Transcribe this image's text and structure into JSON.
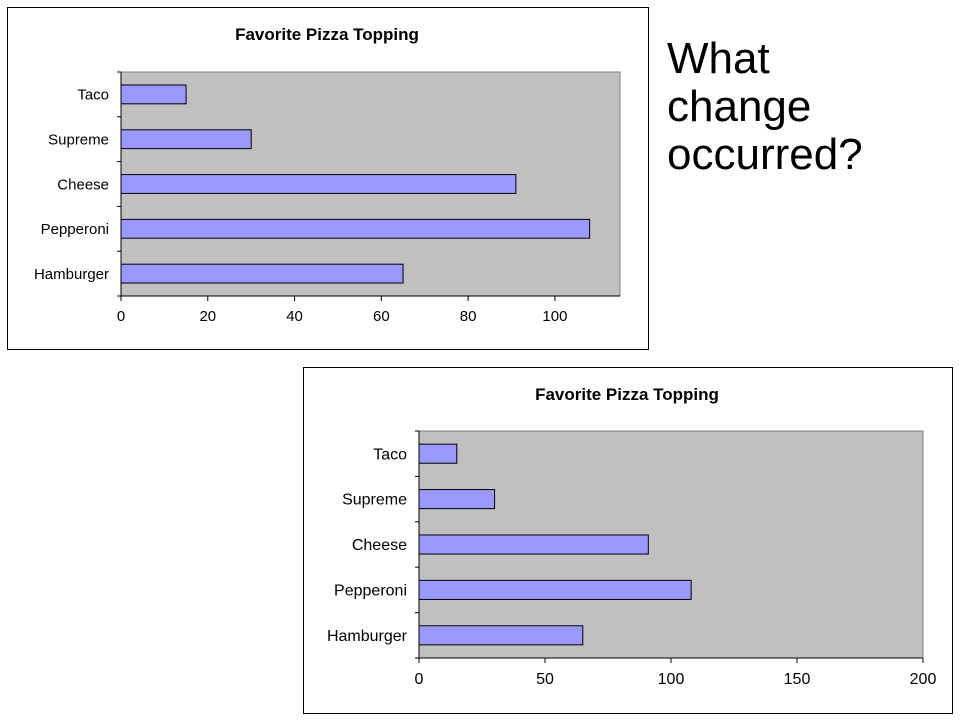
{
  "question": {
    "lines": [
      "What",
      "change",
      "occurred?"
    ]
  },
  "colors": {
    "plot_area": "#c0c0c0",
    "bar_fill": "#9999ff",
    "bar_stroke": "#000000",
    "axis": "#000000"
  },
  "chart_data": [
    {
      "type": "bar",
      "orientation": "horizontal",
      "title": "Favorite Pizza Topping",
      "xlabel": "",
      "ylabel": "",
      "categories": [
        "Taco",
        "Supreme",
        "Cheese",
        "Pepperoni",
        "Hamburger"
      ],
      "values": [
        15,
        30,
        91,
        108,
        65
      ],
      "xlim": [
        0,
        115
      ],
      "x_ticks": [
        0,
        20,
        40,
        60,
        80,
        100
      ],
      "grid": false,
      "legend": "none"
    },
    {
      "type": "bar",
      "orientation": "horizontal",
      "title": "Favorite Pizza Topping",
      "xlabel": "",
      "ylabel": "",
      "categories": [
        "Taco",
        "Supreme",
        "Cheese",
        "Pepperoni",
        "Hamburger"
      ],
      "values": [
        15,
        30,
        91,
        108,
        65
      ],
      "xlim": [
        0,
        200
      ],
      "x_ticks": [
        0,
        50,
        100,
        150,
        200
      ],
      "grid": false,
      "legend": "none"
    }
  ]
}
